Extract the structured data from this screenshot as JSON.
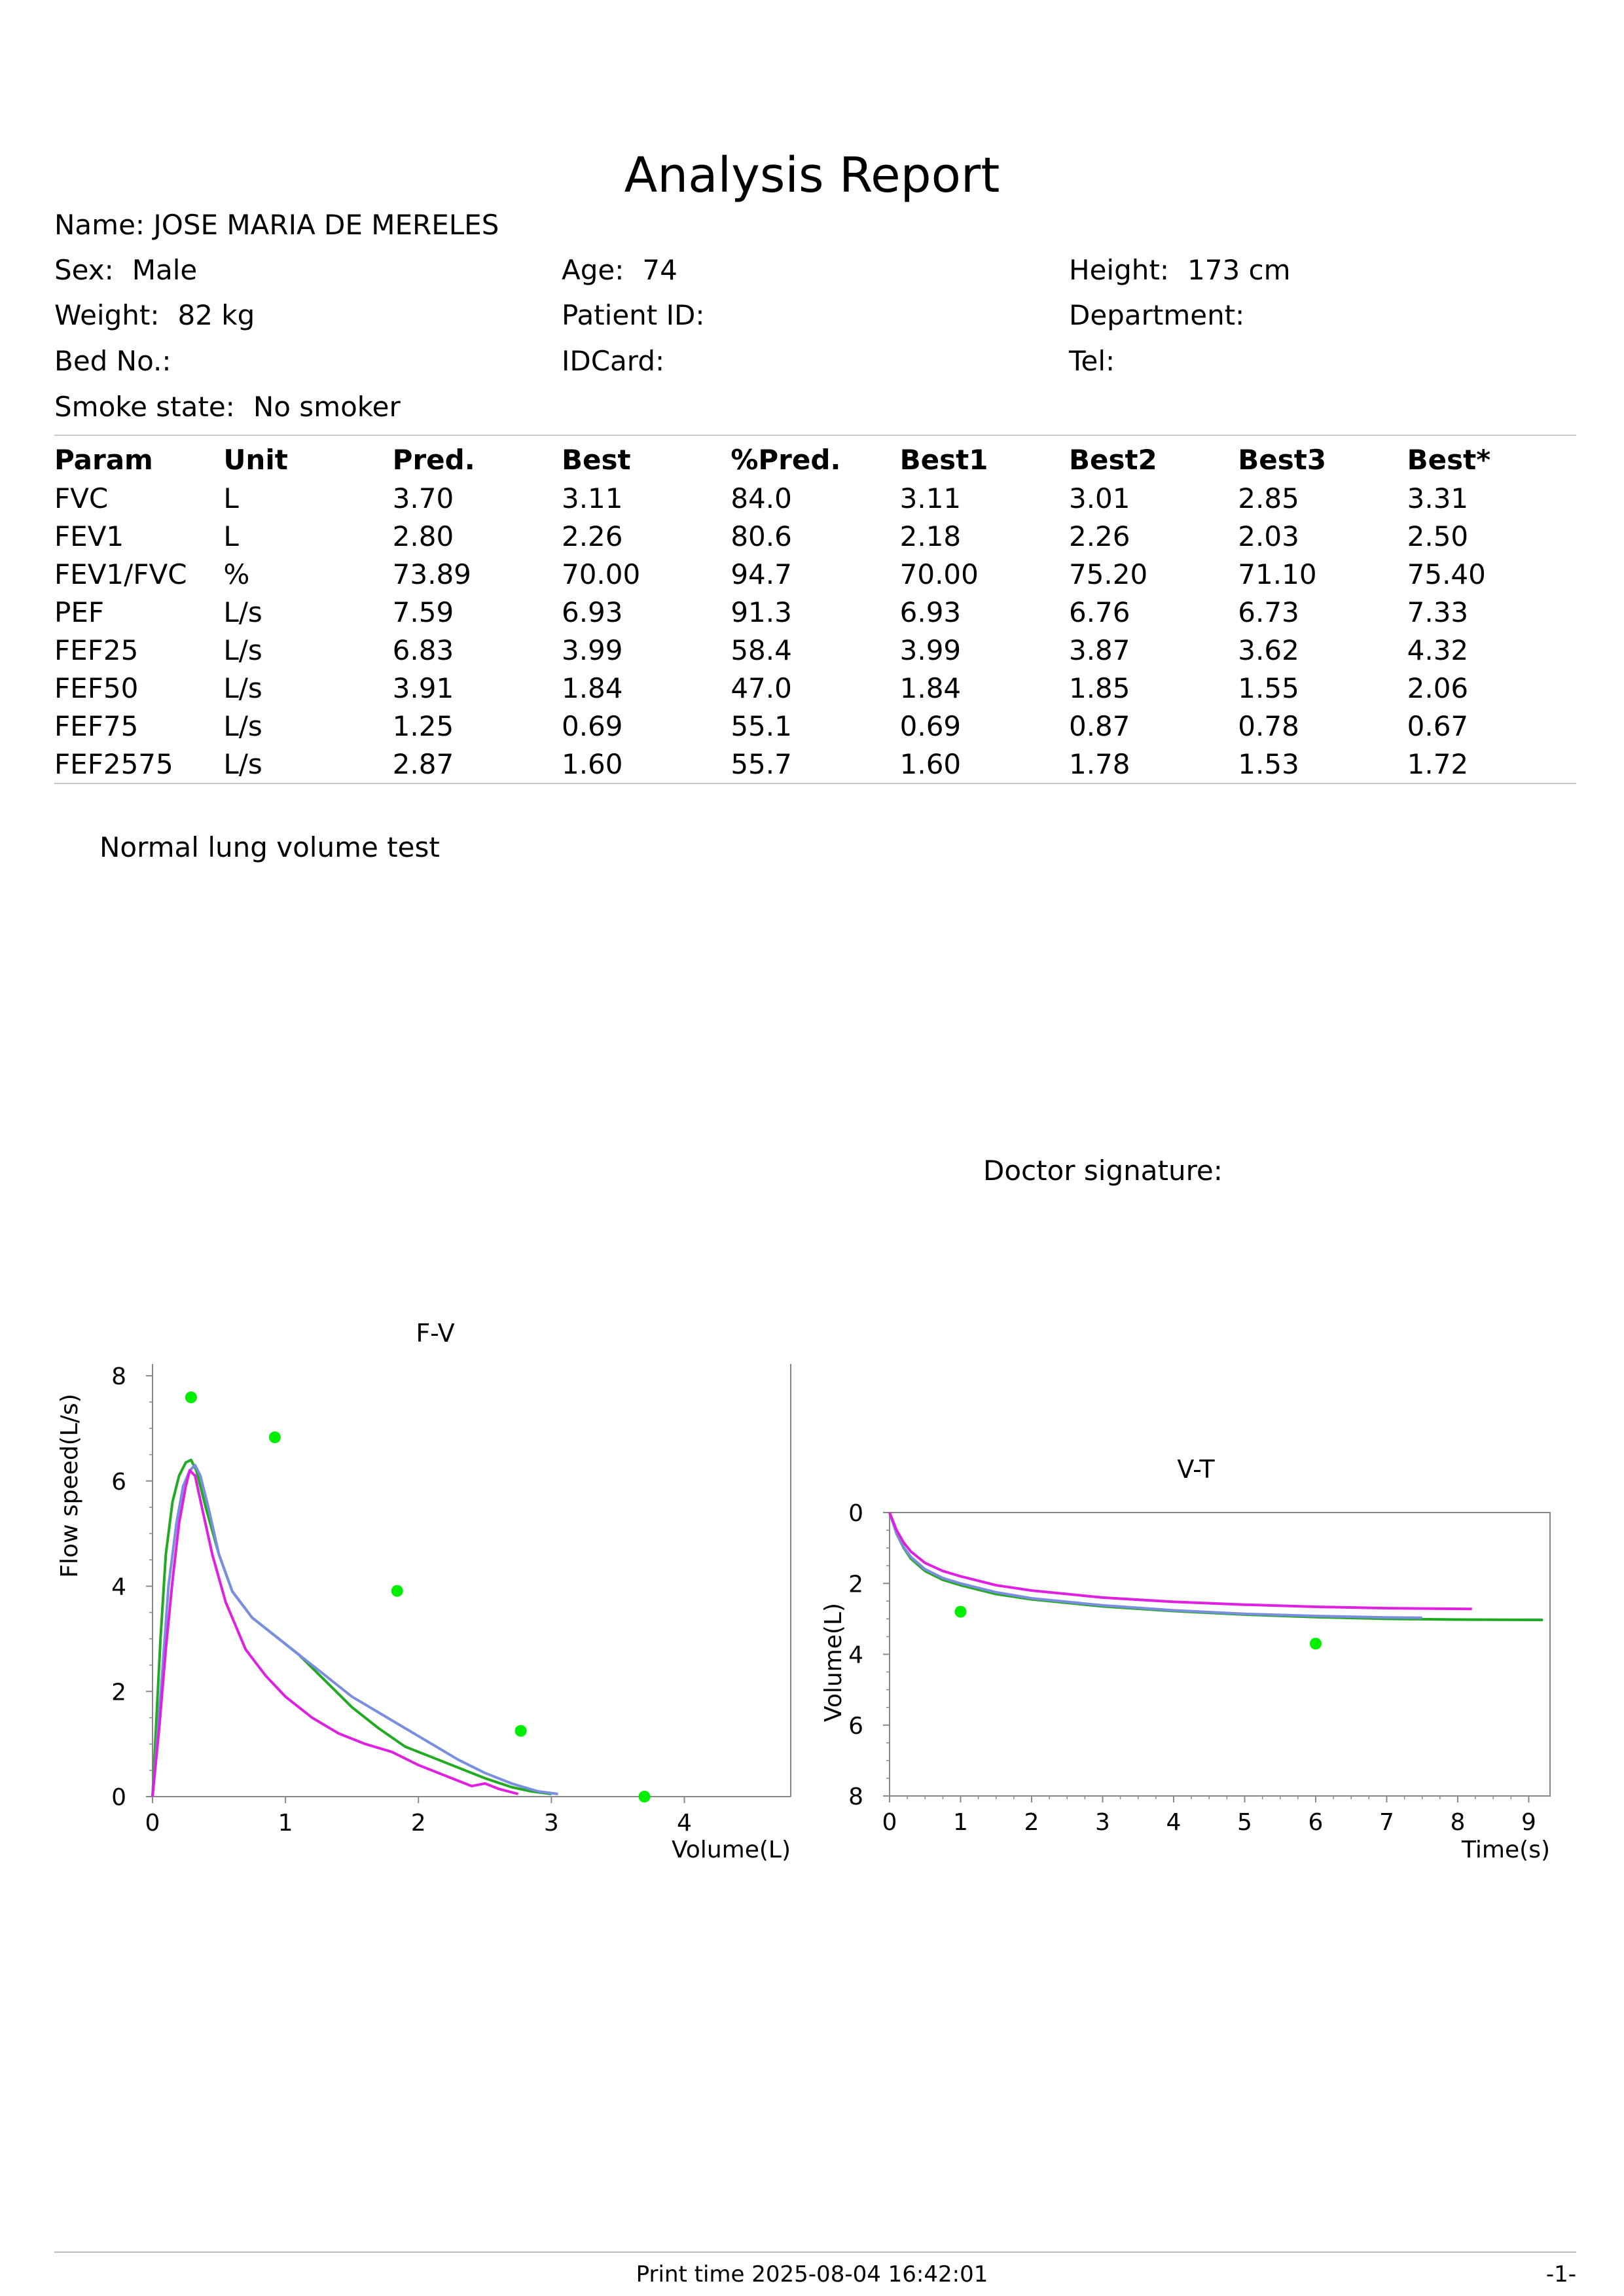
{
  "report": {
    "title": "Analysis Report"
  },
  "patient": {
    "name_label": "Name:",
    "name": "JOSE MARIA DE MERELES",
    "sex_label": "Sex:",
    "sex": "Male",
    "age_label": "Age:",
    "age": "74",
    "height_label": "Height:",
    "height": "173 cm",
    "weight_label": "Weight:",
    "weight": "82 kg",
    "patient_id_label": "Patient ID:",
    "patient_id": "",
    "department_label": "Department:",
    "department": "",
    "bed_label": "Bed No.:",
    "bed": "",
    "idcard_label": "IDCard:",
    "idcard": "",
    "tel_label": "Tel:",
    "tel": "",
    "smoke_label": "Smoke state:",
    "smoke": "No smoker"
  },
  "params_table": {
    "headers": [
      "Param",
      "Unit",
      "Pred.",
      "Best",
      "%Pred.",
      "Best1",
      "Best2",
      "Best3",
      "Best*"
    ],
    "rows": [
      [
        "FVC",
        "L",
        "3.70",
        "3.11",
        "84.0",
        "3.11",
        "3.01",
        "2.85",
        "3.31"
      ],
      [
        "FEV1",
        "L",
        "2.80",
        "2.26",
        "80.6",
        "2.18",
        "2.26",
        "2.03",
        "2.50"
      ],
      [
        "FEV1/FVC",
        "%",
        "73.89",
        "70.00",
        "94.7",
        "70.00",
        "75.20",
        "71.10",
        "75.40"
      ],
      [
        "PEF",
        "L/s",
        "7.59",
        "6.93",
        "91.3",
        "6.93",
        "6.76",
        "6.73",
        "7.33"
      ],
      [
        "FEF25",
        "L/s",
        "6.83",
        "3.99",
        "58.4",
        "3.99",
        "3.87",
        "3.62",
        "4.32"
      ],
      [
        "FEF50",
        "L/s",
        "3.91",
        "1.84",
        "47.0",
        "1.84",
        "1.85",
        "1.55",
        "2.06"
      ],
      [
        "FEF75",
        "L/s",
        "1.25",
        "0.69",
        "55.1",
        "0.69",
        "0.87",
        "0.78",
        "0.67"
      ],
      [
        "FEF2575",
        "L/s",
        "2.87",
        "1.60",
        "55.7",
        "1.60",
        "1.78",
        "1.53",
        "1.72"
      ]
    ]
  },
  "interpretation": "Normal lung volume test",
  "doctor_signature_label": "Doctor signature:",
  "footer": {
    "print_time": "Print time 2025-08-04 16:42:01",
    "page": "-1-"
  },
  "colors": {
    "series_green": "#22aa22",
    "series_blue": "#7a8ee0",
    "series_magenta": "#e020e0",
    "predicted_dot": "#00ee00",
    "axis": "#888888"
  },
  "chart_data": [
    {
      "type": "line",
      "title": "F-V",
      "xlabel": "Volume(L)",
      "ylabel": "Flow speed(L/s)",
      "xlim": [
        0,
        4.8
      ],
      "ylim": [
        0,
        8
      ],
      "x_ticks": [
        "0",
        "1",
        "2",
        "3",
        "4"
      ],
      "y_ticks": [
        "0",
        "2",
        "4",
        "6",
        "8"
      ],
      "series": [
        {
          "color": "#22aa22",
          "x": [
            0,
            0.03,
            0.06,
            0.1,
            0.15,
            0.2,
            0.25,
            0.29,
            0.33,
            0.4,
            0.5,
            0.6,
            0.75,
            0.9,
            1.1,
            1.3,
            1.5,
            1.7,
            1.9,
            2.1,
            2.3,
            2.5,
            2.7,
            2.85,
            3.0
          ],
          "y": [
            0,
            1.5,
            3.0,
            4.6,
            5.6,
            6.1,
            6.35,
            6.4,
            6.2,
            5.5,
            4.6,
            3.9,
            3.4,
            3.1,
            2.7,
            2.2,
            1.7,
            1.3,
            0.95,
            0.75,
            0.55,
            0.35,
            0.18,
            0.1,
            0.05
          ]
        },
        {
          "color": "#7a8ee0",
          "x": [
            0,
            0.04,
            0.08,
            0.12,
            0.18,
            0.23,
            0.28,
            0.32,
            0.36,
            0.42,
            0.5,
            0.6,
            0.75,
            0.9,
            1.1,
            1.3,
            1.5,
            1.7,
            1.9,
            2.1,
            2.3,
            2.5,
            2.7,
            2.9,
            3.05
          ],
          "y": [
            0,
            1.2,
            2.6,
            4.0,
            5.2,
            5.9,
            6.2,
            6.3,
            6.1,
            5.5,
            4.6,
            3.9,
            3.4,
            3.1,
            2.7,
            2.3,
            1.9,
            1.6,
            1.3,
            1.0,
            0.7,
            0.45,
            0.25,
            0.1,
            0.05
          ]
        },
        {
          "color": "#e020e0",
          "x": [
            0,
            0.05,
            0.1,
            0.15,
            0.2,
            0.25,
            0.28,
            0.32,
            0.38,
            0.45,
            0.55,
            0.7,
            0.85,
            1.0,
            1.2,
            1.4,
            1.6,
            1.8,
            2.0,
            2.2,
            2.4,
            2.5,
            2.6,
            2.75
          ],
          "y": [
            0,
            1.3,
            2.8,
            4.1,
            5.2,
            5.9,
            6.2,
            6.1,
            5.4,
            4.6,
            3.7,
            2.8,
            2.3,
            1.9,
            1.5,
            1.2,
            1.0,
            0.85,
            0.6,
            0.4,
            0.2,
            0.25,
            0.15,
            0.05
          ]
        }
      ],
      "predicted_points": {
        "x": [
          0.29,
          0.92,
          1.84,
          2.77,
          3.7
        ],
        "y": [
          7.59,
          6.83,
          3.91,
          1.25,
          0
        ]
      }
    },
    {
      "type": "line",
      "title": "V-T",
      "xlabel": "Time(s)",
      "ylabel": "Volume(L)",
      "xlim": [
        0,
        9.3
      ],
      "ylim": [
        0,
        8
      ],
      "y_inverted": true,
      "x_ticks": [
        "0",
        "1",
        "2",
        "3",
        "4",
        "5",
        "6",
        "7",
        "8",
        "9"
      ],
      "y_ticks": [
        "0",
        "2",
        "4",
        "6",
        "8"
      ],
      "series": [
        {
          "color": "#22aa22",
          "x": [
            0,
            0.05,
            0.1,
            0.2,
            0.3,
            0.5,
            0.75,
            1.0,
            1.5,
            2.0,
            3.0,
            4.0,
            5.0,
            6.0,
            7.0,
            8.0,
            9.2
          ],
          "y": [
            0,
            0.3,
            0.6,
            1.0,
            1.3,
            1.65,
            1.9,
            2.05,
            2.3,
            2.45,
            2.65,
            2.78,
            2.88,
            2.95,
            3.0,
            3.02,
            3.03
          ]
        },
        {
          "color": "#7a8ee0",
          "x": [
            0,
            0.05,
            0.1,
            0.2,
            0.3,
            0.5,
            0.75,
            1.0,
            1.5,
            2.0,
            3.0,
            4.0,
            5.0,
            6.0,
            7.0,
            7.5
          ],
          "y": [
            0,
            0.3,
            0.58,
            0.98,
            1.25,
            1.6,
            1.85,
            2.0,
            2.25,
            2.42,
            2.62,
            2.76,
            2.86,
            2.92,
            2.96,
            2.97
          ]
        },
        {
          "color": "#e020e0",
          "x": [
            0,
            0.05,
            0.1,
            0.2,
            0.3,
            0.5,
            0.75,
            1.0,
            1.5,
            2.0,
            3.0,
            4.0,
            5.0,
            6.0,
            7.0,
            8.2
          ],
          "y": [
            0,
            0.25,
            0.5,
            0.85,
            1.1,
            1.42,
            1.65,
            1.8,
            2.05,
            2.2,
            2.4,
            2.52,
            2.6,
            2.66,
            2.7,
            2.72
          ]
        }
      ],
      "predicted_points": {
        "x": [
          1.0,
          6.0
        ],
        "y": [
          2.8,
          3.7
        ]
      }
    }
  ]
}
